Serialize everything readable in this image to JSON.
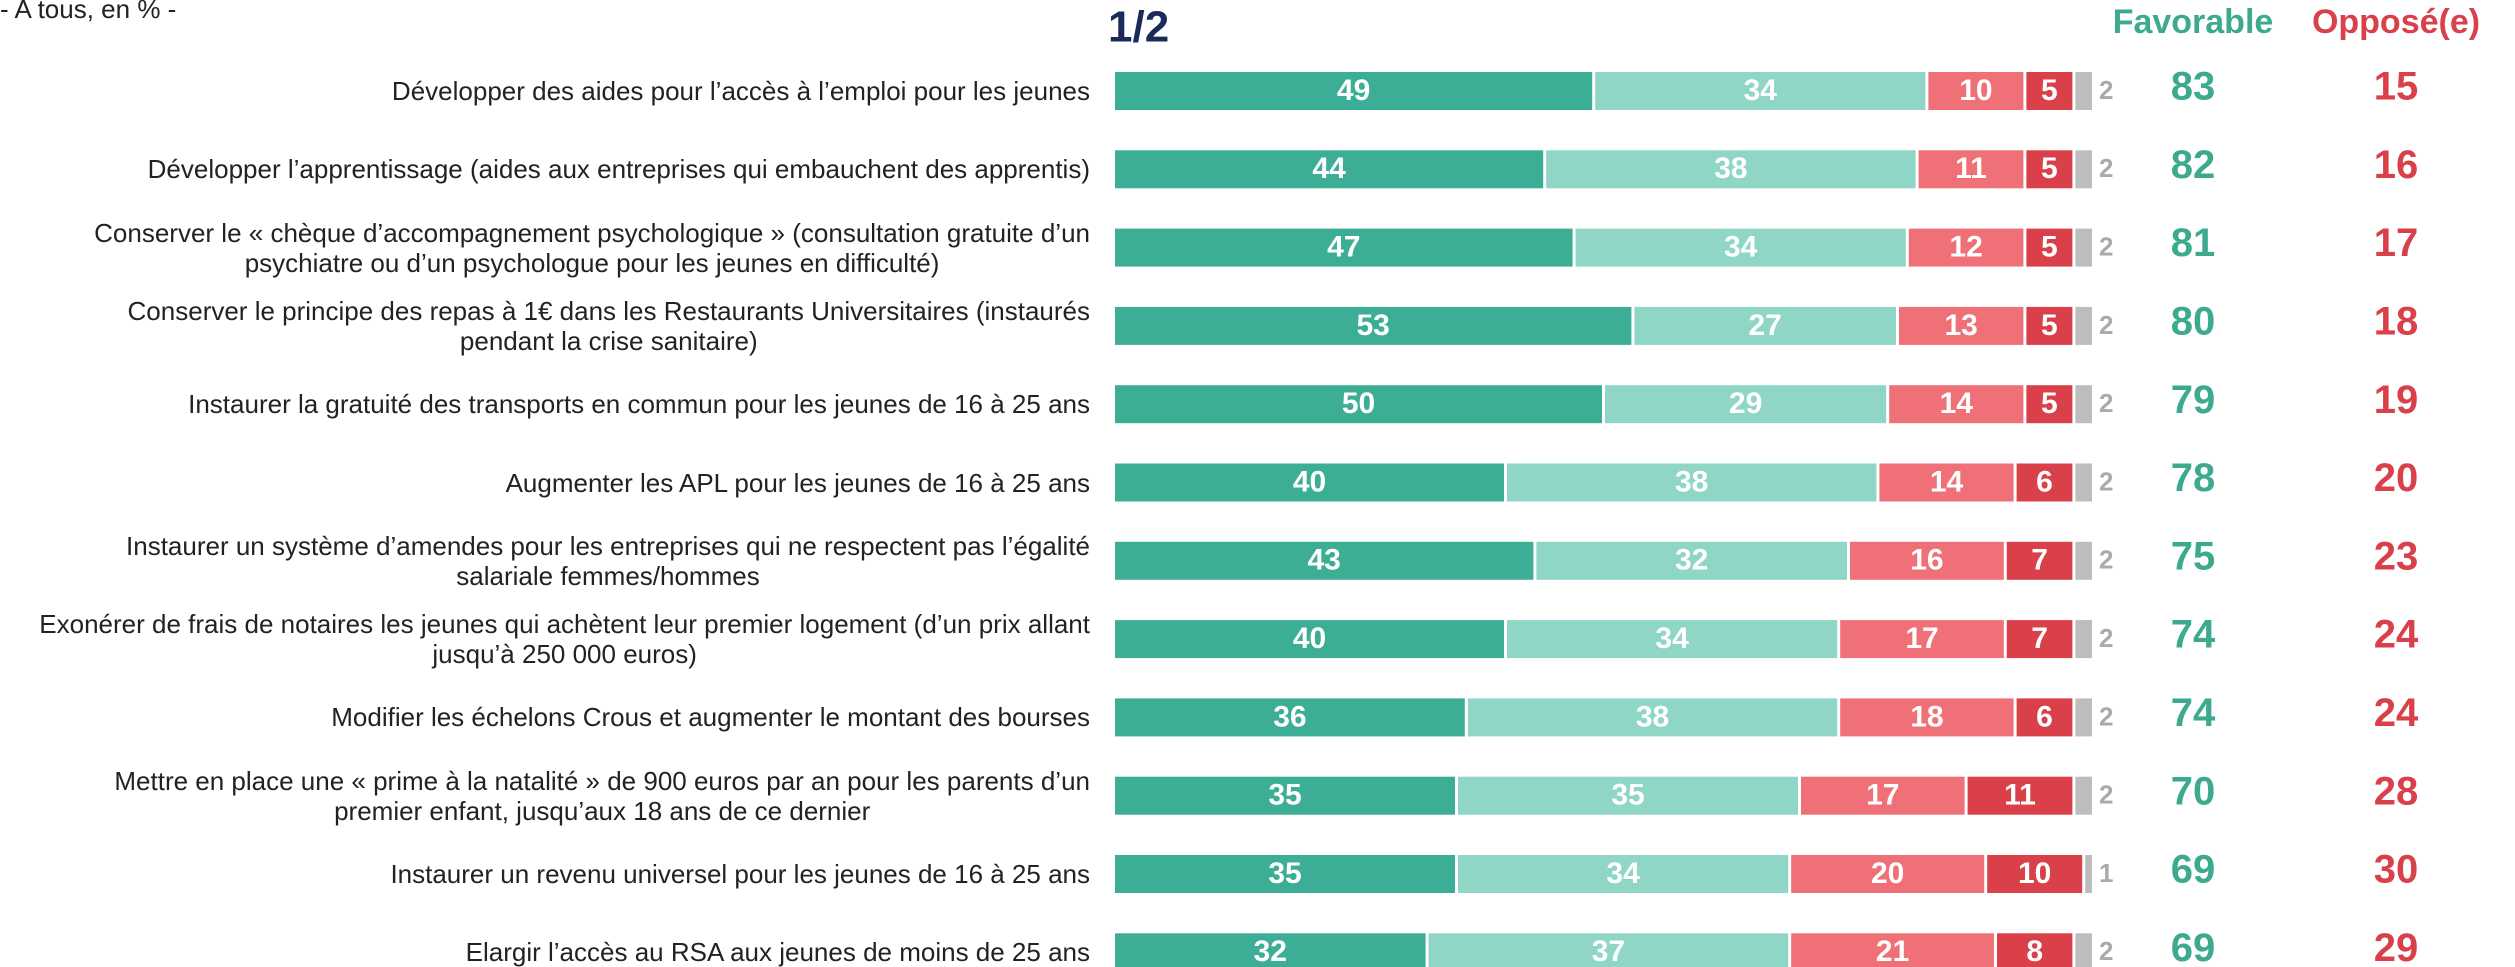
{
  "chart_data": {
    "type": "stacked-bar-horizontal",
    "subtitle": "- A tous, en % -",
    "page_label": "1/2",
    "categories": [
      "Développer des aides pour l’accès à l’emploi pour les jeunes",
      "Développer l’apprentissage (aides aux entreprises qui embauchent des apprentis)",
      "Conserver le « chèque d’accompagnement psychologique » (consultation gratuite d’un\npsychiatre ou d’un psychologue pour les jeunes en difficulté)",
      "Conserver le principe des repas à 1€ dans les Restaurants Universitaires (instaurés\npendant la crise sanitaire)",
      "Instaurer la gratuité des transports en commun pour les jeunes de 16 à 25 ans",
      "Augmenter les APL pour les jeunes de 16 à 25 ans",
      "Instaurer un système d’amendes pour les entreprises qui ne respectent pas l’égalité\nsalariale femmes/hommes",
      "Exonérer de frais de notaires les jeunes qui achètent leur premier logement (d’un prix allant\njusqu’à 250 000 euros)",
      "Modifier les échelons Crous et augmenter le montant des bourses",
      "Mettre en place une « prime à la natalité » de 900 euros par an pour les parents d’un\npremier enfant, jusqu’aux 18 ans de ce dernier",
      "Instaurer un revenu universel pour les jeunes de 16 à 25 ans",
      "Elargir l’accès au RSA aux jeunes de moins de 25 ans"
    ],
    "series": [
      {
        "color": "#3dae96",
        "values": [
          49,
          44,
          47,
          53,
          50,
          40,
          43,
          40,
          36,
          35,
          35,
          32
        ]
      },
      {
        "color": "#8fd6c6",
        "values": [
          34,
          38,
          34,
          27,
          29,
          38,
          32,
          34,
          38,
          35,
          34,
          37
        ]
      },
      {
        "color": "#f07077",
        "values": [
          10,
          11,
          12,
          13,
          14,
          14,
          16,
          17,
          18,
          17,
          20,
          21
        ]
      },
      {
        "color": "#d9404a",
        "values": [
          5,
          5,
          5,
          5,
          5,
          6,
          7,
          7,
          6,
          11,
          10,
          8
        ]
      },
      {
        "color": "#bdbdbd",
        "values": [
          2,
          2,
          2,
          2,
          2,
          2,
          2,
          2,
          2,
          2,
          1,
          2
        ]
      }
    ],
    "xlim": [
      0,
      100
    ],
    "totals": [
      {
        "label": "Favorable",
        "color": "#3daa8f",
        "values": [
          83,
          82,
          81,
          80,
          79,
          78,
          75,
          74,
          74,
          70,
          69,
          69
        ]
      },
      {
        "label": "Opposé(e)",
        "color": "#d9404a",
        "values": [
          15,
          16,
          17,
          18,
          19,
          20,
          23,
          24,
          24,
          28,
          30,
          29
        ]
      }
    ]
  }
}
